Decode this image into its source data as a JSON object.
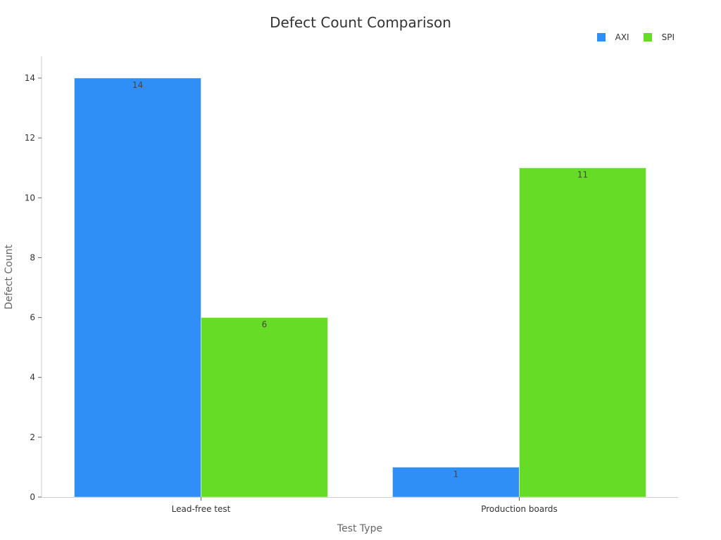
{
  "chart_data": {
    "type": "bar",
    "title": "Defect Count Comparison",
    "xlabel": "Test Type",
    "ylabel": "Defect Count",
    "categories": [
      "Lead-free test",
      "Production boards"
    ],
    "series": [
      {
        "name": "AXI",
        "color": "#2f8ff7",
        "values": [
          14,
          1
        ]
      },
      {
        "name": "SPI",
        "color": "#67dc27",
        "values": [
          6,
          11
        ]
      }
    ],
    "ylim": [
      0,
      14.6
    ],
    "yticks": [
      0,
      2,
      4,
      6,
      8,
      10,
      12,
      14
    ],
    "grid": false,
    "legend_position": "top-right",
    "data_labels": true
  },
  "legend": {
    "items": [
      {
        "label": "AXI",
        "color": "#2f8ff7"
      },
      {
        "label": "SPI",
        "color": "#67dc27"
      }
    ]
  }
}
